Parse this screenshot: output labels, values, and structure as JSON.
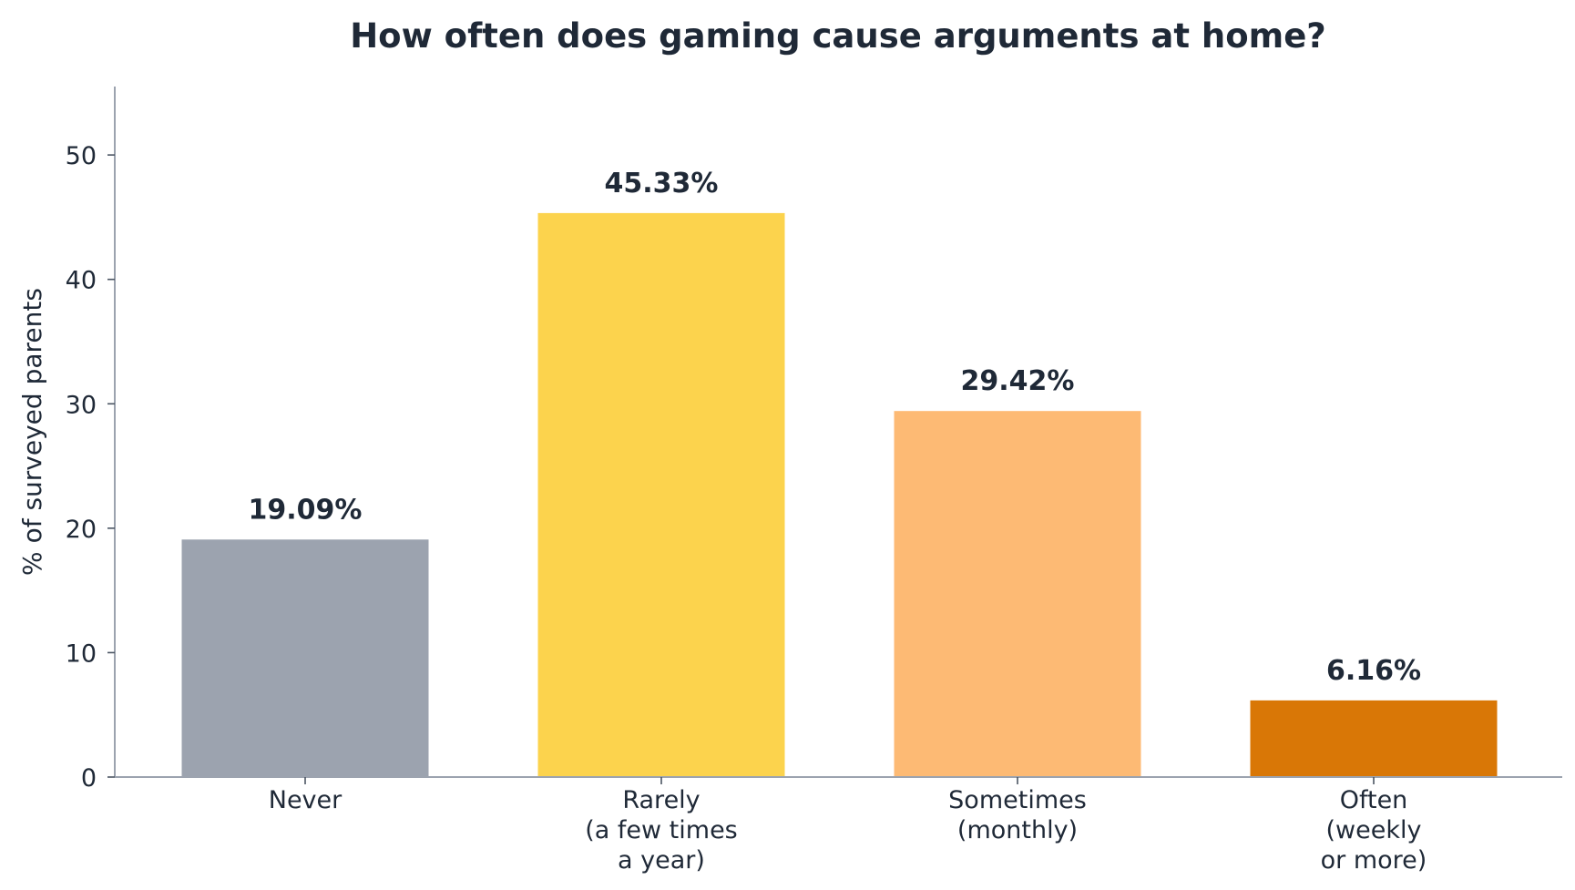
{
  "chart_data": {
    "type": "bar",
    "title": "How often does gaming cause arguments at home?",
    "xlabel": "",
    "ylabel": "% of surveyed parents",
    "categories": [
      [
        "Never"
      ],
      [
        "Rarely",
        "(a few times",
        "a year)"
      ],
      [
        "Sometimes",
        "(monthly)"
      ],
      [
        "Often",
        "(weekly",
        "or more)"
      ]
    ],
    "values": [
      19.09,
      45.33,
      29.42,
      6.16
    ],
    "value_labels": [
      "19.09%",
      "45.33%",
      "29.42%",
      "6.16%"
    ],
    "colors": [
      "#9ca3af",
      "#fcd34d",
      "#fdba74",
      "#d97706"
    ],
    "ylim": [
      0,
      55.5
    ],
    "yticks": [
      0,
      10,
      20,
      30,
      40,
      50
    ],
    "grid": false,
    "legend": "none"
  }
}
